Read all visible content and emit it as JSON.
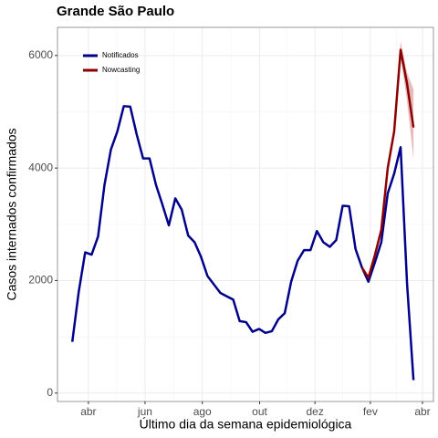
{
  "chart_data": {
    "type": "line",
    "title": "Grande São Paulo",
    "xlabel": "Último dia da semana epidemiológica",
    "ylabel": "Casos internados confirmados",
    "x": [
      0,
      1,
      2,
      3,
      4,
      5,
      6,
      7,
      8,
      9,
      10,
      11,
      12,
      13,
      14,
      15,
      16,
      17,
      18,
      19,
      20,
      21,
      22,
      23,
      24,
      25,
      26,
      27,
      28,
      29,
      30,
      31,
      32,
      33,
      34,
      35,
      36,
      37,
      38,
      39,
      40,
      41,
      42,
      43,
      44,
      45,
      46,
      47,
      48,
      49,
      50,
      51,
      52,
      53
    ],
    "series": [
      {
        "name": "Notificados",
        "color": "#00008b",
        "values": [
          910,
          1800,
          2500,
          2460,
          2780,
          3700,
          4330,
          4650,
          5100,
          5090,
          4600,
          4170,
          4170,
          3700,
          3350,
          2980,
          3460,
          3260,
          2800,
          2680,
          2420,
          2080,
          1930,
          1780,
          1720,
          1660,
          1280,
          1260,
          1090,
          1140,
          1070,
          1100,
          1310,
          1420,
          1980,
          2350,
          2540,
          2540,
          2880,
          2680,
          2600,
          2720,
          3330,
          3320,
          2560,
          2230,
          1980,
          2320,
          2680,
          3550,
          3900,
          4370,
          1950,
          230
        ]
      },
      {
        "name": "Nowcasting",
        "color": "#8b0000",
        "values": [
          null,
          null,
          null,
          null,
          null,
          null,
          null,
          null,
          null,
          null,
          null,
          null,
          null,
          null,
          null,
          null,
          null,
          null,
          null,
          null,
          null,
          null,
          null,
          null,
          null,
          null,
          null,
          null,
          null,
          null,
          null,
          null,
          null,
          null,
          null,
          null,
          null,
          null,
          null,
          null,
          null,
          null,
          null,
          null,
          null,
          2230,
          2050,
          2450,
          2900,
          4000,
          4650,
          6100,
          5500,
          4720
        ],
        "lower": [
          null,
          null,
          null,
          null,
          null,
          null,
          null,
          null,
          null,
          null,
          null,
          null,
          null,
          null,
          null,
          null,
          null,
          null,
          null,
          null,
          null,
          null,
          null,
          null,
          null,
          null,
          null,
          null,
          null,
          null,
          null,
          null,
          null,
          null,
          null,
          null,
          null,
          null,
          null,
          null,
          null,
          null,
          null,
          null,
          null,
          2230,
          2050,
          2450,
          2900,
          3950,
          4580,
          5950,
          5200,
          4150
        ],
        "upper": [
          null,
          null,
          null,
          null,
          null,
          null,
          null,
          null,
          null,
          null,
          null,
          null,
          null,
          null,
          null,
          null,
          null,
          null,
          null,
          null,
          null,
          null,
          null,
          null,
          null,
          null,
          null,
          null,
          null,
          null,
          null,
          null,
          null,
          null,
          null,
          null,
          null,
          null,
          null,
          null,
          null,
          null,
          null,
          null,
          null,
          2230,
          2050,
          2450,
          2900,
          4050,
          4720,
          6250,
          5700,
          5400
        ]
      }
    ],
    "band_color": "#d98c8c",
    "xlim": [
      -2.3,
      56.1
    ],
    "xticks": [
      {
        "value": 2.5,
        "label": "abr"
      },
      {
        "value": 11.3,
        "label": "jun"
      },
      {
        "value": 20.2,
        "label": "ago"
      },
      {
        "value": 29.1,
        "label": "out"
      },
      {
        "value": 37.7,
        "label": "dez"
      },
      {
        "value": 46.3,
        "label": "fev"
      },
      {
        "value": 54.4,
        "label": "abr"
      }
    ],
    "ylim": [
      -150,
      6500
    ],
    "yticks": [
      0,
      2000,
      4000,
      6000
    ],
    "grid": true,
    "legend": "top-left"
  }
}
